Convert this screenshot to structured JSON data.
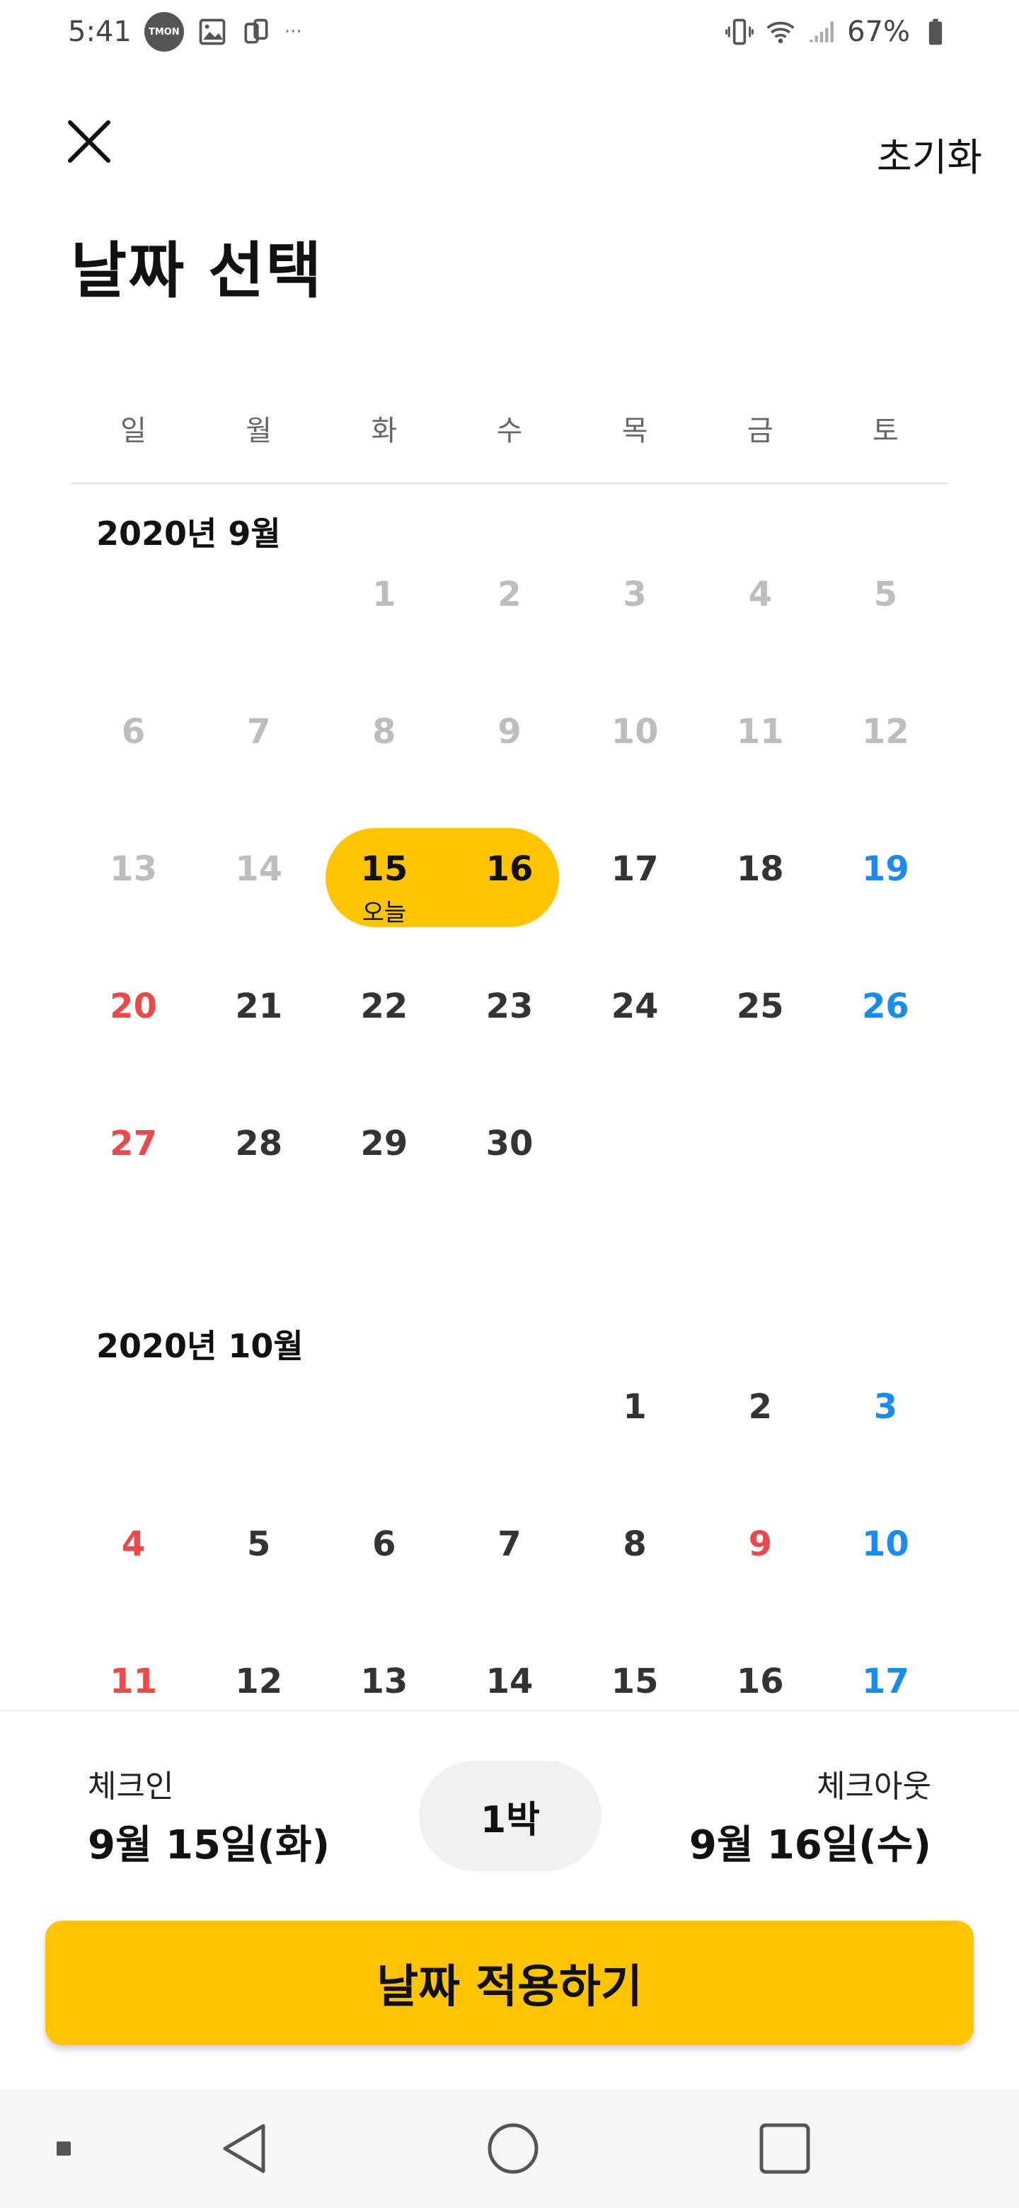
{
  "status_bar": {
    "time": "5:41",
    "badge": "TMON",
    "battery": "67%"
  },
  "header": {
    "close_icon": "close-icon",
    "reset_label": "초기화",
    "title": "날짜 선택"
  },
  "weekdays": [
    "일",
    "월",
    "화",
    "수",
    "목",
    "금",
    "토"
  ],
  "months": [
    {
      "title": "2020년 9월",
      "weeks": [
        [
          "",
          "",
          "1",
          "2",
          "3",
          "4",
          "5"
        ],
        [
          "6",
          "7",
          "8",
          "9",
          "10",
          "11",
          "12"
        ],
        [
          "13",
          "14",
          "15",
          "16",
          "17",
          "18",
          "19"
        ],
        [
          "20",
          "21",
          "22",
          "23",
          "24",
          "25",
          "26"
        ],
        [
          "27",
          "28",
          "29",
          "30",
          "",
          "",
          ""
        ]
      ],
      "today_label": "오늘"
    },
    {
      "title": "2020년 10월",
      "weeks": [
        [
          "",
          "",
          "",
          "",
          "1",
          "2",
          "3"
        ],
        [
          "4",
          "5",
          "6",
          "7",
          "8",
          "9",
          "10"
        ],
        [
          "11",
          "12",
          "13",
          "14",
          "15",
          "16",
          "17"
        ]
      ]
    }
  ],
  "booking": {
    "checkin_label": "체크인",
    "checkin_date": "9월 15일(화)",
    "nights": "1박",
    "checkout_label": "체크아웃",
    "checkout_date": "9월 16일(수)"
  },
  "apply_button": "날짜 적용하기",
  "colors": {
    "accent": "#ffc400",
    "sunday": "#f04848",
    "saturday": "#1a8bf0",
    "past": "#bdbdbd"
  }
}
